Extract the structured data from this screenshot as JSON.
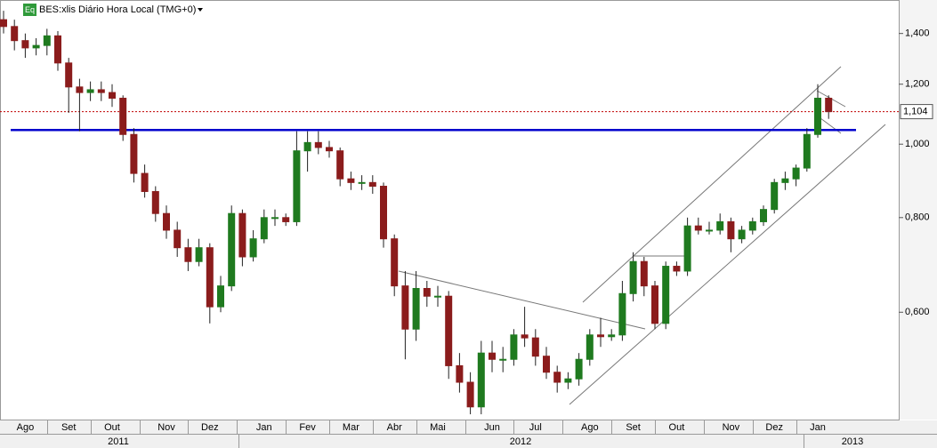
{
  "chart_data": {
    "type": "candlestick",
    "title": "BES:xlis Diário Hora Local (TMG+0)",
    "badge": "Eq",
    "log_y": true,
    "ylim": [
      0.433,
      1.55
    ],
    "y2ticks": [
      {
        "value": 1.4,
        "label": "1,400"
      },
      {
        "value": 1.2,
        "label": "1,200"
      },
      {
        "value": 1.0,
        "label": "1,000"
      },
      {
        "value": 0.8,
        "label": "0,800"
      },
      {
        "value": 0.6,
        "label": "0,600"
      }
    ],
    "up_color": "#1f7a1f",
    "down_color": "#8b1c1c",
    "last_price": {
      "value": 1.104,
      "label": "1,104"
    },
    "support_level": 1.044,
    "years": [
      "2011",
      "2012",
      "2013"
    ],
    "categories": [
      null,
      null,
      "Ago",
      null,
      null,
      null,
      "Set",
      null,
      null,
      null,
      "Out",
      null,
      null,
      null,
      null,
      "Nov",
      null,
      null,
      null,
      "Dez",
      null,
      null,
      null,
      null,
      "Jan",
      null,
      null,
      null,
      "Fev",
      null,
      null,
      null,
      "Mar",
      null,
      null,
      null,
      "Abr",
      null,
      null,
      null,
      "Mai",
      null,
      null,
      null,
      null,
      "Jun",
      null,
      null,
      null,
      "Jul",
      null,
      null,
      null,
      null,
      "Ago",
      null,
      null,
      null,
      "Set",
      null,
      null,
      null,
      "Out",
      null,
      null,
      null,
      null,
      "Nov",
      null,
      null,
      null,
      "Dez",
      null,
      null,
      null,
      "Jan",
      null
    ],
    "open": [
      1.46,
      1.43,
      1.37,
      1.34,
      1.35,
      1.39,
      1.28,
      1.19,
      1.17,
      1.18,
      1.17,
      1.15,
      1.03,
      0.915,
      0.866,
      0.81,
      0.77,
      0.73,
      0.7,
      0.73,
      0.61,
      0.65,
      0.81,
      0.71,
      0.75,
      0.8,
      0.8,
      0.79,
      0.98,
      1.005,
      0.99,
      0.98,
      0.9,
      0.89,
      0.89,
      0.88,
      0.75,
      0.65,
      0.57,
      0.645,
      0.63,
      0.63,
      0.51,
      0.485,
      0.45,
      0.53,
      0.52,
      0.52,
      0.56,
      0.555,
      0.525,
      0.5,
      0.485,
      0.49,
      0.52,
      0.56,
      0.557,
      0.56,
      0.635,
      0.7,
      0.65,
      0.58,
      0.69,
      0.68,
      0.78,
      0.77,
      0.77,
      0.79,
      0.75,
      0.77,
      0.79,
      0.82,
      0.89,
      0.9,
      0.93,
      1.03,
      1.15
    ],
    "high": [
      1.5,
      1.46,
      1.4,
      1.38,
      1.42,
      1.41,
      1.3,
      1.22,
      1.21,
      1.21,
      1.2,
      1.16,
      1.05,
      0.94,
      0.88,
      0.83,
      0.79,
      0.75,
      0.75,
      0.74,
      0.67,
      0.83,
      0.82,
      0.77,
      0.82,
      0.82,
      0.81,
      1.04,
      1.04,
      1.04,
      1.01,
      0.99,
      0.92,
      0.91,
      0.91,
      0.89,
      0.76,
      0.68,
      0.68,
      0.66,
      0.65,
      0.64,
      0.53,
      0.5,
      0.55,
      0.55,
      0.54,
      0.57,
      0.61,
      0.57,
      0.54,
      0.51,
      0.5,
      0.53,
      0.57,
      0.59,
      0.57,
      0.66,
      0.72,
      0.71,
      0.66,
      0.7,
      0.7,
      0.8,
      0.8,
      0.79,
      0.81,
      0.8,
      0.78,
      0.8,
      0.83,
      0.9,
      0.92,
      0.94,
      1.05,
      1.2,
      1.16
    ],
    "low": [
      1.4,
      1.33,
      1.3,
      1.31,
      1.31,
      1.25,
      1.1,
      1.04,
      1.14,
      1.14,
      1.12,
      1.01,
      0.89,
      0.85,
      0.79,
      0.75,
      0.71,
      0.68,
      0.69,
      0.58,
      0.6,
      0.64,
      0.69,
      0.7,
      0.74,
      0.78,
      0.78,
      0.78,
      0.92,
      0.97,
      0.96,
      0.88,
      0.87,
      0.87,
      0.86,
      0.73,
      0.63,
      0.52,
      0.55,
      0.61,
      0.61,
      0.49,
      0.47,
      0.44,
      0.44,
      0.5,
      0.5,
      0.51,
      0.54,
      0.51,
      0.49,
      0.47,
      0.475,
      0.48,
      0.51,
      0.54,
      0.55,
      0.55,
      0.62,
      0.63,
      0.57,
      0.57,
      0.67,
      0.67,
      0.76,
      0.76,
      0.76,
      0.72,
      0.74,
      0.76,
      0.78,
      0.81,
      0.87,
      0.88,
      0.92,
      1.02,
      1.08
    ],
    "close": [
      1.43,
      1.37,
      1.34,
      1.35,
      1.39,
      1.28,
      1.19,
      1.17,
      1.18,
      1.17,
      1.15,
      1.03,
      0.915,
      0.866,
      0.81,
      0.77,
      0.73,
      0.7,
      0.73,
      0.61,
      0.65,
      0.81,
      0.71,
      0.75,
      0.8,
      0.8,
      0.79,
      0.98,
      1.005,
      0.99,
      0.98,
      0.9,
      0.89,
      0.89,
      0.88,
      0.75,
      0.65,
      0.57,
      0.645,
      0.63,
      0.63,
      0.51,
      0.485,
      0.45,
      0.53,
      0.52,
      0.52,
      0.56,
      0.555,
      0.525,
      0.5,
      0.485,
      0.49,
      0.52,
      0.56,
      0.557,
      0.56,
      0.635,
      0.7,
      0.65,
      0.58,
      0.69,
      0.68,
      0.78,
      0.77,
      0.77,
      0.79,
      0.75,
      0.77,
      0.79,
      0.82,
      0.89,
      0.9,
      0.93,
      1.03,
      1.15,
      1.104
    ]
  }
}
